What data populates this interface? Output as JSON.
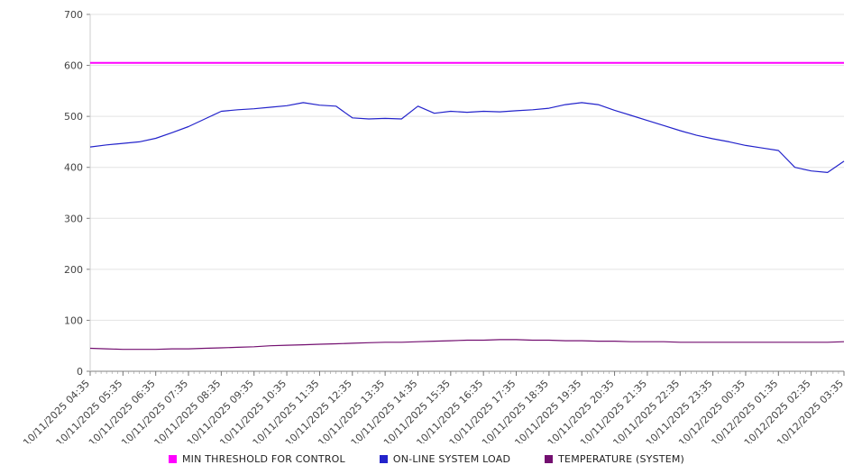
{
  "chart_data": {
    "type": "line",
    "title": "",
    "xlabel": "",
    "ylabel": "",
    "ylim": [
      0,
      700
    ],
    "y_ticks": [
      0,
      100,
      200,
      300,
      400,
      500,
      600,
      700
    ],
    "grid": "horizontal",
    "legend_position": "bottom",
    "x_labels": [
      "10/11/2025 04:35",
      "10/11/2025 05:35",
      "10/11/2025 06:35",
      "10/11/2025 07:35",
      "10/11/2025 08:35",
      "10/11/2025 09:35",
      "10/11/2025 10:35",
      "10/11/2025 11:35",
      "10/11/2025 12:35",
      "10/11/2025 13:35",
      "10/11/2025 14:35",
      "10/11/2025 15:35",
      "10/11/2025 16:35",
      "10/11/2025 17:35",
      "10/11/2025 18:35",
      "10/11/2025 19:35",
      "10/11/2025 20:35",
      "10/11/2025 21:35",
      "10/11/2025 22:35",
      "10/11/2025 23:35",
      "10/12/2025 00:35",
      "10/12/2025 01:35",
      "10/12/2025 02:35",
      "10/12/2025 03:35"
    ],
    "series": [
      {
        "name": "MIN THRESHOLD FOR CONTROL",
        "color": "#ff00ff",
        "type": "constant",
        "value": 605
      },
      {
        "name": "ON-LINE SYSTEM LOAD",
        "color": "#2323cb",
        "type": "line",
        "values": [
          440,
          444,
          447,
          450,
          457,
          468,
          480,
          495,
          510,
          513,
          515,
          518,
          521,
          527,
          522,
          520,
          497,
          495,
          496,
          495,
          520,
          506,
          510,
          508,
          510,
          509,
          511,
          513,
          516,
          523,
          527,
          523,
          512,
          502,
          492,
          482,
          472,
          463,
          456,
          450,
          443,
          438,
          433,
          400,
          393,
          390,
          412
        ]
      },
      {
        "name": "TEMPERATURE (SYSTEM)",
        "color": "#730f70",
        "type": "line",
        "values": [
          45,
          44,
          43,
          43,
          43,
          44,
          44,
          45,
          46,
          47,
          48,
          50,
          51,
          52,
          53,
          54,
          55,
          56,
          57,
          57,
          58,
          59,
          60,
          61,
          61,
          62,
          62,
          61,
          61,
          60,
          60,
          59,
          59,
          58,
          58,
          58,
          57,
          57,
          57,
          57,
          57,
          57,
          57,
          57,
          57,
          57,
          58
        ]
      }
    ]
  }
}
